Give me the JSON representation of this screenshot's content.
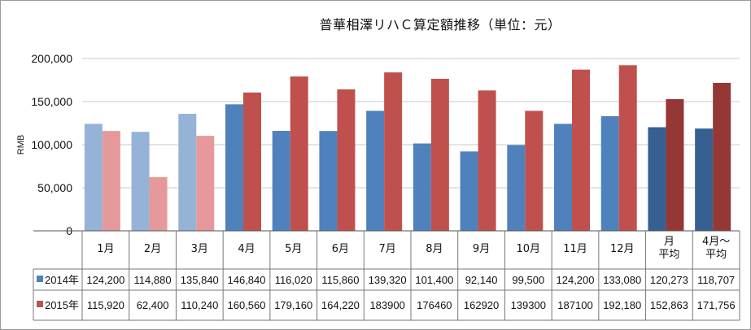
{
  "chart_data": {
    "type": "bar",
    "title": "普華相澤リハＣ算定額推移（単位：元）",
    "ylabel": "RMB",
    "xlabel": "",
    "ylim": [
      0,
      200000
    ],
    "yticks": [
      "0",
      "50,000",
      "100,000",
      "150,000",
      "200,000"
    ],
    "ytick_values": [
      0,
      50000,
      100000,
      150000,
      200000
    ],
    "grid": true,
    "legend_placement": "data-table-left",
    "categories": [
      "1月",
      "2月",
      "3月",
      "4月",
      "5月",
      "6月",
      "7月",
      "8月",
      "9月",
      "10月",
      "11月",
      "12月",
      "月\n平均",
      "4月～\n平均"
    ],
    "series": [
      {
        "name": "2014年",
        "values": [
          124200,
          114880,
          135840,
          146840,
          116020,
          115860,
          139320,
          101400,
          92140,
          99500,
          124200,
          133080,
          120273,
          118707
        ],
        "labels": [
          "124,200",
          "114,880",
          "135,840",
          "146,840",
          "116,020",
          "115,860",
          "139,320",
          "101,400",
          "92,140",
          "99,500",
          "124,200",
          "133,080",
          "120,273",
          "118,707"
        ],
        "colors": [
          "#95b3d7",
          "#95b3d7",
          "#95b3d7",
          "#4f81bd",
          "#4f81bd",
          "#4f81bd",
          "#4f81bd",
          "#4f81bd",
          "#4f81bd",
          "#4f81bd",
          "#4f81bd",
          "#4f81bd",
          "#366092",
          "#366092"
        ],
        "legend_color": "#4f81bd"
      },
      {
        "name": "2015年",
        "values": [
          115920,
          62400,
          110240,
          160560,
          179160,
          164220,
          183900,
          176460,
          162920,
          139300,
          187100,
          192180,
          152863,
          171756
        ],
        "labels": [
          "115,920",
          "62,400",
          "110,240",
          "160,560",
          "179,160",
          "164,220",
          "183900",
          "176460",
          "162920",
          "139300",
          "187100",
          "192,180",
          "152,863",
          "171,756"
        ],
        "colors": [
          "#e6999a",
          "#e6999a",
          "#e6999a",
          "#c0504d",
          "#c0504d",
          "#c0504d",
          "#c0504d",
          "#c0504d",
          "#c0504d",
          "#c0504d",
          "#c0504d",
          "#c0504d",
          "#953735",
          "#953735"
        ],
        "legend_color": "#c0504d"
      }
    ]
  }
}
